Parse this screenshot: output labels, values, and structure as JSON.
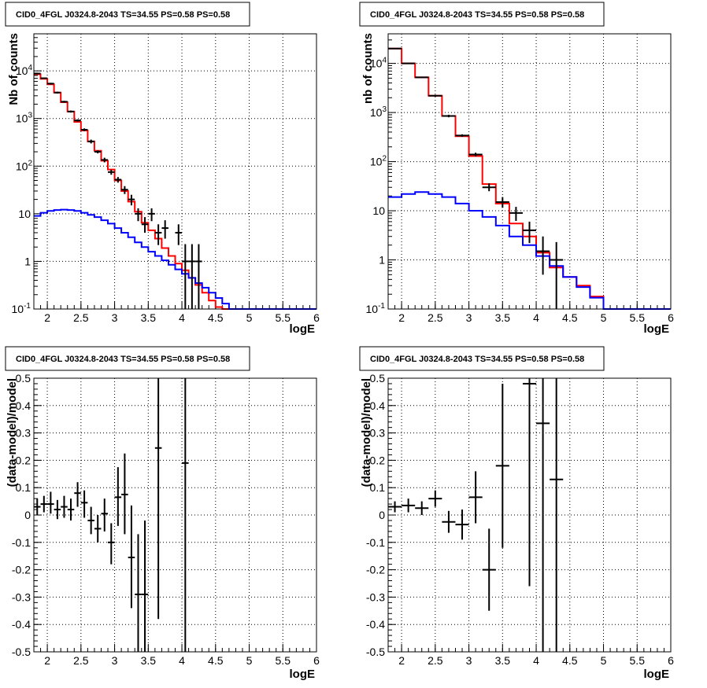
{
  "colors": {
    "data": "#000000",
    "total_model": "#ff0000",
    "source_model": "#0000ff",
    "grid": "#000000"
  },
  "chart_data": [
    {
      "type": "line",
      "title": "CID0_4FGL J0324.8-2043 TS=34.55 PS=0.58 PS=0.58",
      "xlabel": "logE",
      "ylabel": "Nb of counts",
      "xlim": [
        1.8,
        6
      ],
      "ylim": [
        0.1,
        60000
      ],
      "yscale": "log",
      "grid": true,
      "xticks": [
        "2",
        "2.5",
        "3",
        "3.5",
        "4",
        "4.5",
        "5",
        "5.5",
        "6"
      ],
      "yticks": [
        "10^-1",
        "1",
        "10",
        "10^2",
        "10^3",
        "10^4"
      ],
      "bin_edges": [
        1.8,
        1.9,
        2.0,
        2.1,
        2.2,
        2.3,
        2.4,
        2.5,
        2.6,
        2.7,
        2.8,
        2.9,
        3.0,
        3.1,
        3.2,
        3.3,
        3.4,
        3.5,
        3.6,
        3.7,
        3.8,
        3.9,
        4.0,
        4.1,
        4.2,
        4.3,
        4.4,
        4.5,
        4.6,
        4.7,
        4.8,
        4.9,
        5.0,
        5.1,
        5.2,
        5.3,
        5.4,
        5.5,
        5.6,
        5.7,
        5.8,
        5.9,
        6.0
      ],
      "series": [
        {
          "role": "total_model",
          "values": [
            8500,
            6800,
            5200,
            3500,
            2200,
            1400,
            850,
            560,
            330,
            210,
            130,
            85,
            50,
            30,
            18,
            11,
            6.5,
            4.5,
            3.0,
            1.9,
            1.3,
            0.9,
            0.65,
            0.45,
            0.32,
            0.22,
            0.15,
            0.11,
            0.1,
            0.1,
            0.1,
            0.1,
            0.1,
            0.1,
            0.1,
            0.1,
            0.1,
            0.1,
            0.1,
            0.1,
            0.1,
            0.1
          ]
        },
        {
          "role": "source_model",
          "values": [
            9,
            10.5,
            11.5,
            12,
            12.2,
            12,
            11.5,
            10.5,
            9.5,
            8.5,
            7.3,
            6.2,
            5.0,
            4.0,
            3.2,
            2.5,
            2.0,
            1.6,
            1.3,
            1.05,
            0.85,
            0.68,
            0.55,
            0.45,
            0.35,
            0.28,
            0.22,
            0.17,
            0.13,
            0.1,
            0.1,
            0.1,
            0.1,
            0.1,
            0.1,
            0.1,
            0.1,
            0.1,
            0.1,
            0.1,
            0.1,
            0.1
          ]
        },
        {
          "role": "data",
          "points": [
            {
              "x": 1.85,
              "y": 8800,
              "ylo": 8600,
              "yhi": 9000
            },
            {
              "x": 1.95,
              "y": 7000,
              "ylo": 6800,
              "yhi": 7200
            },
            {
              "x": 2.05,
              "y": 5400,
              "ylo": 5200,
              "yhi": 5600
            },
            {
              "x": 2.15,
              "y": 3500,
              "ylo": 3350,
              "yhi": 3650
            },
            {
              "x": 2.25,
              "y": 2250,
              "ylo": 2150,
              "yhi": 2350
            },
            {
              "x": 2.35,
              "y": 1400,
              "ylo": 1330,
              "yhi": 1470
            },
            {
              "x": 2.45,
              "y": 910,
              "ylo": 860,
              "yhi": 960
            },
            {
              "x": 2.55,
              "y": 580,
              "ylo": 540,
              "yhi": 620
            },
            {
              "x": 2.65,
              "y": 330,
              "ylo": 300,
              "yhi": 360
            },
            {
              "x": 2.75,
              "y": 200,
              "ylo": 185,
              "yhi": 215
            },
            {
              "x": 2.85,
              "y": 135,
              "ylo": 120,
              "yhi": 150
            },
            {
              "x": 2.95,
              "y": 75,
              "ylo": 66,
              "yhi": 84
            },
            {
              "x": 3.05,
              "y": 52,
              "ylo": 45,
              "yhi": 59
            },
            {
              "x": 3.15,
              "y": 32,
              "ylo": 26,
              "yhi": 38
            },
            {
              "x": 3.25,
              "y": 20,
              "ylo": 15,
              "yhi": 25
            },
            {
              "x": 3.35,
              "y": 10,
              "ylo": 7,
              "yhi": 13
            },
            {
              "x": 3.45,
              "y": 6,
              "ylo": 4,
              "yhi": 8.5
            },
            {
              "x": 3.55,
              "y": 10,
              "ylo": 7,
              "yhi": 13
            },
            {
              "x": 3.65,
              "y": 4,
              "ylo": 2.2,
              "yhi": 6
            },
            {
              "x": 3.75,
              "y": 5,
              "ylo": 3,
              "yhi": 7.3
            },
            {
              "x": 3.95,
              "y": 4,
              "ylo": 2.2,
              "yhi": 6
            },
            {
              "x": 4.05,
              "y": 1,
              "ylo": 0.1,
              "yhi": 2.3
            },
            {
              "x": 4.15,
              "y": 1,
              "ylo": 0.1,
              "yhi": 2.3
            },
            {
              "x": 4.25,
              "y": 1,
              "ylo": 0.1,
              "yhi": 2.3
            }
          ]
        }
      ]
    },
    {
      "type": "line",
      "title": "CID0_4FGL J0324.8-2043 TS=34.55 PS=0.58 PS=0.58",
      "xlabel": "logE",
      "ylabel": "nb of counts",
      "xlim": [
        1.8,
        6
      ],
      "ylim": [
        0.1,
        40000
      ],
      "yscale": "log",
      "grid": true,
      "xticks": [
        "2",
        "2.5",
        "3",
        "3.5",
        "4",
        "4.5",
        "5",
        "5.5",
        "6"
      ],
      "yticks": [
        "10^-1",
        "1",
        "10",
        "10^2",
        "10^3",
        "10^4"
      ],
      "bin_edges": [
        1.8,
        2.0,
        2.2,
        2.4,
        2.6,
        2.8,
        3.0,
        3.2,
        3.4,
        3.6,
        3.8,
        4.0,
        4.2,
        4.4,
        4.6,
        4.8,
        5.0,
        5.2,
        5.4,
        5.6,
        5.8,
        6.0
      ],
      "series": [
        {
          "role": "total_model",
          "values": [
            20000,
            10000,
            5200,
            2200,
            850,
            330,
            130,
            35,
            14,
            5.5,
            3.0,
            1.4,
            0.7,
            0.45,
            0.3,
            0.18,
            0.1,
            0.1,
            0.1,
            0.1,
            0.1
          ]
        },
        {
          "role": "source_model",
          "values": [
            19,
            22,
            24,
            22,
            19,
            14,
            10,
            7.5,
            5,
            3,
            2,
            1.2,
            0.75,
            0.45,
            0.28,
            0.17,
            0.1,
            0.1,
            0.1,
            0.1,
            0.1
          ]
        },
        {
          "role": "data",
          "points": [
            {
              "x": 1.9,
              "y": 20000,
              "ylo": 19600,
              "yhi": 20400
            },
            {
              "x": 2.1,
              "y": 10000,
              "ylo": 9800,
              "yhi": 10200
            },
            {
              "x": 2.3,
              "y": 5200,
              "ylo": 5050,
              "yhi": 5350
            },
            {
              "x": 2.5,
              "y": 2200,
              "ylo": 2100,
              "yhi": 2300
            },
            {
              "x": 2.7,
              "y": 850,
              "ylo": 800,
              "yhi": 900
            },
            {
              "x": 2.9,
              "y": 340,
              "ylo": 320,
              "yhi": 360
            },
            {
              "x": 3.1,
              "y": 140,
              "ylo": 128,
              "yhi": 152
            },
            {
              "x": 3.3,
              "y": 30,
              "ylo": 25,
              "yhi": 36
            },
            {
              "x": 3.5,
              "y": 15,
              "ylo": 11.5,
              "yhi": 19
            },
            {
              "x": 3.7,
              "y": 9,
              "ylo": 6.2,
              "yhi": 12
            },
            {
              "x": 3.9,
              "y": 4,
              "ylo": 2.2,
              "yhi": 6
            },
            {
              "x": 4.1,
              "y": 1.5,
              "ylo": 0.5,
              "yhi": 3
            },
            {
              "x": 4.3,
              "y": 1,
              "ylo": 0.1,
              "yhi": 2.3
            }
          ]
        }
      ]
    },
    {
      "type": "scatter",
      "title": "CID0_4FGL J0324.8-2043 TS=34.55 PS=0.58 PS=0.58",
      "xlabel": "logE",
      "ylabel": "(data-model)/model",
      "xlim": [
        1.8,
        6
      ],
      "ylim": [
        -0.5,
        0.5
      ],
      "grid": true,
      "xticks": [
        "2",
        "2.5",
        "3",
        "3.5",
        "4",
        "4.5",
        "5",
        "5.5",
        "6"
      ],
      "yticks": [
        "-0.5",
        "-0.4",
        "-0.3",
        "-0.2",
        "-0.1",
        "0",
        "0.1",
        "0.2",
        "0.3",
        "0.4",
        "0.5"
      ],
      "series": [
        {
          "role": "data",
          "points": [
            {
              "x": 1.85,
              "y": 0.03,
              "ylo": 0.0,
              "yhi": 0.06
            },
            {
              "x": 1.95,
              "y": 0.04,
              "ylo": 0.01,
              "yhi": 0.07
            },
            {
              "x": 2.05,
              "y": 0.04,
              "ylo": 0.005,
              "yhi": 0.085
            },
            {
              "x": 2.15,
              "y": 0.02,
              "ylo": -0.015,
              "yhi": 0.055
            },
            {
              "x": 2.25,
              "y": 0.03,
              "ylo": -0.01,
              "yhi": 0.07
            },
            {
              "x": 2.35,
              "y": 0.02,
              "ylo": -0.02,
              "yhi": 0.06
            },
            {
              "x": 2.45,
              "y": 0.08,
              "ylo": 0.03,
              "yhi": 0.12
            },
            {
              "x": 2.55,
              "y": 0.045,
              "ylo": -0.01,
              "yhi": 0.09
            },
            {
              "x": 2.65,
              "y": -0.02,
              "ylo": -0.07,
              "yhi": 0.03
            },
            {
              "x": 2.75,
              "y": -0.05,
              "ylo": -0.1,
              "yhi": 0.0
            },
            {
              "x": 2.85,
              "y": 0.005,
              "ylo": -0.06,
              "yhi": 0.06
            },
            {
              "x": 2.95,
              "y": -0.1,
              "ylo": -0.18,
              "yhi": -0.03
            },
            {
              "x": 3.05,
              "y": 0.065,
              "ylo": -0.04,
              "yhi": 0.175
            },
            {
              "x": 3.15,
              "y": 0.075,
              "ylo": -0.07,
              "yhi": 0.225
            },
            {
              "x": 3.25,
              "y": -0.155,
              "ylo": -0.34,
              "yhi": 0.035
            },
            {
              "x": 3.35,
              "y": -0.29,
              "ylo": -0.5,
              "yhi": -0.07
            },
            {
              "x": 3.45,
              "y": -0.29,
              "ylo": -0.5,
              "yhi": -0.02
            },
            {
              "x": 3.65,
              "y": 0.245,
              "ylo": -0.38,
              "yhi": 0.5
            },
            {
              "x": 4.05,
              "y": 0.19,
              "ylo": -0.5,
              "yhi": 0.5
            }
          ]
        }
      ]
    },
    {
      "type": "scatter",
      "title": "CID0_4FGL J0324.8-2043 TS=34.55 PS=0.58 PS=0.58",
      "xlabel": "logE",
      "ylabel": "(data-model)/model",
      "xlim": [
        1.8,
        6
      ],
      "ylim": [
        -0.5,
        0.5
      ],
      "grid": true,
      "xticks": [
        "2",
        "2.5",
        "3",
        "3.5",
        "4",
        "4.5",
        "5",
        "5.5",
        "6"
      ],
      "yticks": [
        "-0.5",
        "-0.4",
        "-0.3",
        "-0.2",
        "-0.1",
        "0",
        "0.1",
        "0.2",
        "0.3",
        "0.4",
        "0.5"
      ],
      "series": [
        {
          "role": "data",
          "points": [
            {
              "x": 1.9,
              "y": 0.03,
              "ylo": 0.01,
              "yhi": 0.05
            },
            {
              "x": 2.1,
              "y": 0.035,
              "ylo": 0.01,
              "yhi": 0.06
            },
            {
              "x": 2.3,
              "y": 0.025,
              "ylo": 0.0,
              "yhi": 0.05
            },
            {
              "x": 2.5,
              "y": 0.06,
              "ylo": 0.03,
              "yhi": 0.09
            },
            {
              "x": 2.7,
              "y": -0.025,
              "ylo": -0.065,
              "yhi": 0.015
            },
            {
              "x": 2.9,
              "y": -0.035,
              "ylo": -0.09,
              "yhi": 0.02
            },
            {
              "x": 3.1,
              "y": 0.065,
              "ylo": -0.03,
              "yhi": 0.16
            },
            {
              "x": 3.3,
              "y": -0.2,
              "ylo": -0.35,
              "yhi": -0.05
            },
            {
              "x": 3.5,
              "y": 0.18,
              "ylo": -0.12,
              "yhi": 0.48
            },
            {
              "x": 3.9,
              "y": 0.48,
              "ylo": -0.26,
              "yhi": 0.5
            },
            {
              "x": 4.1,
              "y": 0.335,
              "ylo": -0.5,
              "yhi": 0.5
            },
            {
              "x": 4.3,
              "y": 0.13,
              "ylo": -0.5,
              "yhi": 0.5
            }
          ]
        }
      ]
    }
  ]
}
